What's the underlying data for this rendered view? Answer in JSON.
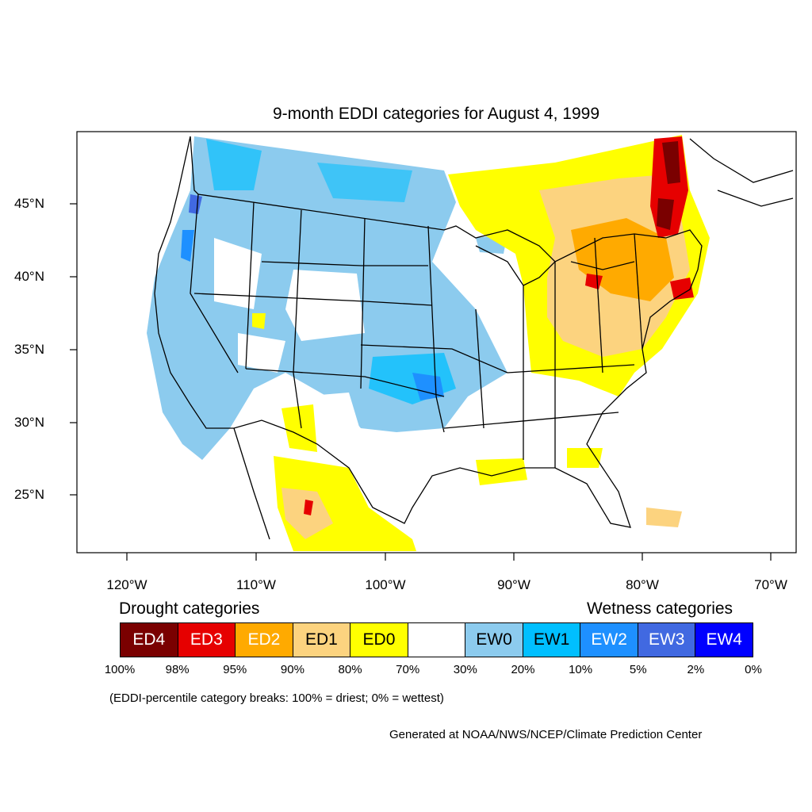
{
  "title": "9-month EDDI categories for August 4, 1999",
  "map": {
    "lat_ticks": [
      "45°N",
      "40°N",
      "35°N",
      "30°N",
      "25°N"
    ],
    "lon_ticks": [
      "120°W",
      "110°W",
      "100°W",
      "90°W",
      "80°W",
      "70°W"
    ]
  },
  "legend": {
    "drought_heading": "Drought categories",
    "wetness_heading": "Wetness categories",
    "categories": [
      {
        "label": "ED4",
        "color": "#7a0000",
        "text_color": "#ffffff"
      },
      {
        "label": "ED3",
        "color": "#e60000",
        "text_color": "#ffffff"
      },
      {
        "label": "ED2",
        "color": "#ffaa00",
        "text_color": "#ffffff"
      },
      {
        "label": "ED1",
        "color": "#fcd37f",
        "text_color": "#000000"
      },
      {
        "label": "ED0",
        "color": "#ffff00",
        "text_color": "#000000"
      },
      {
        "label": "",
        "color": "#ffffff",
        "text_color": "#000000"
      },
      {
        "label": "EW0",
        "color": "#8ccbee",
        "text_color": "#000000"
      },
      {
        "label": "EW1",
        "color": "#00bfff",
        "text_color": "#000000"
      },
      {
        "label": "EW2",
        "color": "#1e90ff",
        "text_color": "#ffffff"
      },
      {
        "label": "EW3",
        "color": "#4169e1",
        "text_color": "#ffffff"
      },
      {
        "label": "EW4",
        "color": "#0000ff",
        "text_color": "#ffffff"
      }
    ],
    "breaks": [
      "100%",
      "98%",
      "95%",
      "90%",
      "80%",
      "70%",
      "30%",
      "20%",
      "10%",
      "5%",
      "2%",
      "0%"
    ],
    "note": "(EDDI-percentile category breaks: 100% = driest; 0% = wettest)"
  },
  "credit": "Generated at NOAA/NWS/NCEP/Climate Prediction Center"
}
